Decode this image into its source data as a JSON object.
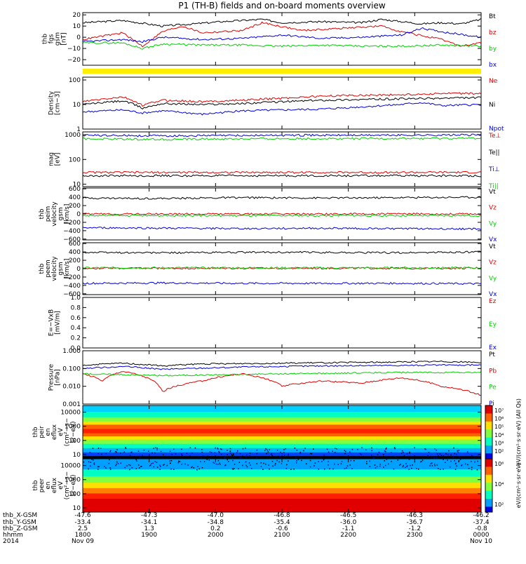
{
  "title": "P1 (TH-B) fields and on-board moments overview",
  "colors": {
    "black": "#000000",
    "red": "#e00000",
    "green": "#00d000",
    "blue": "#0000e0",
    "yellow": "#ffee00"
  },
  "colorbar_ticks": {
    "top": [
      "10⁷",
      "10⁶",
      "10⁵",
      "10⁴",
      "10³",
      "10²"
    ],
    "bottom": [
      "10⁶",
      "10⁴",
      "10²"
    ],
    "label_top": "eV/(cm²·s·sr·eV) (All Qs)",
    "label_bottom": "eV/(cm²·s·sr·eV)"
  },
  "time_axis": {
    "row_labels": [
      "thb_X-GSM",
      "thb_Y-GSM",
      "thb_Z-GSM",
      "hhmm",
      "2014"
    ],
    "columns": [
      {
        "x_gsm": "-47.6",
        "y_gsm": "-33.4",
        "z_gsm": "2.5",
        "hhmm": "1800",
        "date": "Nov 09"
      },
      {
        "x_gsm": "-47.3",
        "y_gsm": "-34.1",
        "z_gsm": "1.3",
        "hhmm": "1900",
        "date": ""
      },
      {
        "x_gsm": "-47.0",
        "y_gsm": "-34.8",
        "z_gsm": "0.2",
        "hhmm": "2000",
        "date": ""
      },
      {
        "x_gsm": "-46.8",
        "y_gsm": "-35.4",
        "z_gsm": "-0.6",
        "hhmm": "2100",
        "date": ""
      },
      {
        "x_gsm": "-46.5",
        "y_gsm": "-36.0",
        "z_gsm": "-1.1",
        "hhmm": "2200",
        "date": ""
      },
      {
        "x_gsm": "-46.3",
        "y_gsm": "-36.7",
        "z_gsm": "-1.2",
        "hhmm": "2300",
        "date": ""
      },
      {
        "x_gsm": "-46.2",
        "y_gsm": "-37.4",
        "z_gsm": "-0.8",
        "hhmm": "0000",
        "date": "Nov 10"
      }
    ]
  },
  "chart_data": [
    {
      "type": "line",
      "id": "fgs",
      "ylabel_lines": [
        "thb",
        "fgs",
        "gsm",
        "[nT]"
      ],
      "yscale": "linear",
      "ylim": [
        -25,
        22
      ],
      "yticks": [
        "20",
        "10",
        "0",
        "−10",
        "−20"
      ],
      "ytick_values": [
        20,
        10,
        0,
        -10,
        -20
      ],
      "series": [
        {
          "name": "Bt",
          "color": "black",
          "points": [
            [
              0,
              13
            ],
            [
              0.1,
              15
            ],
            [
              0.2,
              10
            ],
            [
              0.28,
              12
            ],
            [
              0.35,
              14
            ],
            [
              0.45,
              16
            ],
            [
              0.5,
              13
            ],
            [
              0.6,
              14
            ],
            [
              0.7,
              13
            ],
            [
              0.75,
              16
            ],
            [
              0.8,
              14
            ],
            [
              0.85,
              12
            ],
            [
              0.9,
              13
            ],
            [
              0.95,
              12
            ],
            [
              1,
              16
            ]
          ]
        },
        {
          "name": "bz",
          "color": "red",
          "points": [
            [
              0,
              -2
            ],
            [
              0.1,
              4
            ],
            [
              0.15,
              -8
            ],
            [
              0.2,
              5
            ],
            [
              0.25,
              10
            ],
            [
              0.3,
              4
            ],
            [
              0.4,
              6
            ],
            [
              0.45,
              13
            ],
            [
              0.55,
              6
            ],
            [
              0.65,
              8
            ],
            [
              0.75,
              10
            ],
            [
              0.8,
              5
            ],
            [
              0.9,
              -2
            ],
            [
              0.95,
              -8
            ],
            [
              1,
              -5
            ]
          ]
        },
        {
          "name": "by",
          "color": "green",
          "points": [
            [
              0,
              -5
            ],
            [
              0.1,
              -5
            ],
            [
              0.15,
              -10
            ],
            [
              0.2,
              -6
            ],
            [
              0.3,
              -7
            ],
            [
              0.4,
              -7
            ],
            [
              0.5,
              -8
            ],
            [
              0.6,
              -7
            ],
            [
              0.7,
              -8
            ],
            [
              0.8,
              -8
            ],
            [
              0.9,
              -7
            ],
            [
              1,
              -8
            ]
          ]
        },
        {
          "name": "bx",
          "color": "blue",
          "points": [
            [
              0,
              -4
            ],
            [
              0.1,
              -2
            ],
            [
              0.15,
              -4
            ],
            [
              0.2,
              0
            ],
            [
              0.3,
              -2
            ],
            [
              0.4,
              -1
            ],
            [
              0.5,
              2
            ],
            [
              0.6,
              -1
            ],
            [
              0.7,
              0
            ],
            [
              0.8,
              2
            ],
            [
              0.85,
              8
            ],
            [
              0.9,
              5
            ],
            [
              1,
              0
            ]
          ]
        }
      ]
    },
    {
      "type": "line",
      "id": "density",
      "ylabel_lines": [
        "Density",
        "[cm−3]"
      ],
      "yscale": "log",
      "ylim": [
        1,
        130
      ],
      "yticks": [
        "100",
        "10",
        "1"
      ],
      "ytick_values": [
        100,
        10,
        1
      ],
      "series": [
        {
          "name": "Ne",
          "color": "red",
          "points": [
            [
              0,
              13
            ],
            [
              0.1,
              20
            ],
            [
              0.15,
              9
            ],
            [
              0.2,
              15
            ],
            [
              0.3,
              13
            ],
            [
              0.4,
              15
            ],
            [
              0.5,
              18
            ],
            [
              0.6,
              22
            ],
            [
              0.7,
              24
            ],
            [
              0.8,
              25
            ],
            [
              0.9,
              28
            ],
            [
              1,
              28
            ]
          ]
        },
        {
          "name": "Ni",
          "color": "black",
          "points": [
            [
              0,
              10
            ],
            [
              0.1,
              14
            ],
            [
              0.15,
              7
            ],
            [
              0.2,
              11
            ],
            [
              0.3,
              10
            ],
            [
              0.4,
              11
            ],
            [
              0.5,
              13
            ],
            [
              0.6,
              15
            ],
            [
              0.7,
              16
            ],
            [
              0.8,
              17
            ],
            [
              0.9,
              18
            ],
            [
              1,
              19
            ]
          ]
        },
        {
          "name": "Npot",
          "color": "blue",
          "points": [
            [
              0,
              5
            ],
            [
              0.1,
              6
            ],
            [
              0.15,
              4.5
            ],
            [
              0.2,
              5.5
            ],
            [
              0.3,
              4
            ],
            [
              0.4,
              5.5
            ],
            [
              0.5,
              6
            ],
            [
              0.6,
              6.5
            ],
            [
              0.7,
              8
            ],
            [
              0.8,
              10
            ],
            [
              0.85,
              12
            ],
            [
              0.9,
              9
            ],
            [
              1,
              10
            ]
          ]
        }
      ]
    },
    {
      "type": "line",
      "id": "temperature",
      "ylabel_lines": [
        "mag",
        "[eV]"
      ],
      "yscale": "log",
      "ylim": [
        8,
        1300
      ],
      "yticks": [
        "1000",
        "100",
        "10"
      ],
      "ytick_values": [
        1000,
        100,
        10
      ],
      "series": [
        {
          "name": "Te⊥",
          "color": "red",
          "points": [
            [
              0,
              30
            ],
            [
              0.5,
              30
            ],
            [
              1,
              30
            ]
          ]
        },
        {
          "name": "Te||",
          "color": "black",
          "points": [
            [
              0,
              22
            ],
            [
              0.5,
              22
            ],
            [
              1,
              22
            ]
          ]
        },
        {
          "name": "Ti⊥",
          "color": "blue",
          "points": [
            [
              0,
              950
            ],
            [
              0.2,
              900
            ],
            [
              0.5,
              950
            ],
            [
              0.8,
              960
            ],
            [
              1,
              980
            ]
          ]
        },
        {
          "name": "Ti||",
          "color": "green",
          "points": [
            [
              0,
              680
            ],
            [
              0.2,
              650
            ],
            [
              0.5,
              690
            ],
            [
              0.8,
              700
            ],
            [
              1,
              710
            ]
          ]
        }
      ]
    },
    {
      "type": "line",
      "id": "peim-velocity",
      "ylabel_lines": [
        "thb",
        "peim",
        "velocity",
        "gsm",
        "[km/s]"
      ],
      "yscale": "linear",
      "ylim": [
        -620,
        620
      ],
      "yticks": [
        "600",
        "400",
        "200",
        "0",
        "−200",
        "−400",
        "−600"
      ],
      "ytick_values": [
        600,
        400,
        200,
        0,
        -200,
        -400,
        -600
      ],
      "series": [
        {
          "name": "Vt",
          "color": "black",
          "points": [
            [
              0,
              380
            ],
            [
              0.2,
              370
            ],
            [
              0.4,
              390
            ],
            [
              0.6,
              380
            ],
            [
              0.8,
              390
            ],
            [
              1,
              400
            ]
          ]
        },
        {
          "name": "Vz",
          "color": "red",
          "points": [
            [
              0,
              0
            ],
            [
              0.5,
              0
            ],
            [
              1,
              0
            ]
          ]
        },
        {
          "name": "Vy",
          "color": "green",
          "points": [
            [
              0,
              -40
            ],
            [
              0.5,
              -40
            ],
            [
              1,
              -40
            ]
          ]
        },
        {
          "name": "Vx",
          "color": "blue",
          "points": [
            [
              0,
              -330
            ],
            [
              0.2,
              -340
            ],
            [
              0.4,
              -350
            ],
            [
              0.6,
              -340
            ],
            [
              0.8,
              -350
            ],
            [
              1,
              -360
            ]
          ]
        }
      ]
    },
    {
      "type": "line",
      "id": "peem-velocity",
      "ylabel_lines": [
        "thb",
        "peem",
        "velocity",
        "gsm",
        "[km/s]"
      ],
      "yscale": "linear",
      "ylim": [
        -620,
        620
      ],
      "yticks": [
        "600",
        "400",
        "200",
        "0",
        "−200",
        "−400",
        "−600"
      ],
      "ytick_values": [
        600,
        400,
        200,
        0,
        -200,
        -400,
        -600
      ],
      "series": [
        {
          "name": "Vt",
          "color": "black",
          "points": [
            [
              0,
              390
            ],
            [
              0.2,
              380
            ],
            [
              0.4,
              390
            ],
            [
              0.6,
              390
            ],
            [
              0.8,
              380
            ],
            [
              1,
              400
            ]
          ]
        },
        {
          "name": "Vz",
          "color": "red",
          "points": [
            [
              0,
              10
            ],
            [
              0.5,
              10
            ],
            [
              1,
              10
            ]
          ]
        },
        {
          "name": "Vy",
          "color": "green",
          "points": [
            [
              0,
              20
            ],
            [
              0.5,
              20
            ],
            [
              1,
              20
            ]
          ]
        },
        {
          "name": "Vx",
          "color": "blue",
          "points": [
            [
              0,
              -350
            ],
            [
              0.2,
              -340
            ],
            [
              0.4,
              -350
            ],
            [
              0.6,
              -350
            ],
            [
              0.8,
              -350
            ],
            [
              1,
              -360
            ]
          ]
        }
      ]
    },
    {
      "type": "line",
      "id": "e-field",
      "ylabel_lines": [
        "E=−VxB",
        "[mV/m]"
      ],
      "yscale": "linear",
      "ylim": [
        0,
        1
      ],
      "yticks": [
        "1.0",
        "0.8",
        "0.6",
        "0.4",
        "0.2",
        "0.0"
      ],
      "ytick_values": [
        1.0,
        0.8,
        0.6,
        0.4,
        0.2,
        0.0
      ],
      "series": [
        {
          "name": "Ez",
          "color": "red",
          "points": []
        },
        {
          "name": "Ey",
          "color": "green",
          "points": []
        },
        {
          "name": "Ex",
          "color": "blue",
          "points": []
        }
      ]
    },
    {
      "type": "line",
      "id": "pressure",
      "ylabel_lines": [
        "Pressure",
        "[nPa]"
      ],
      "yscale": "log",
      "ylim": [
        0.001,
        1
      ],
      "yticks": [
        "1.000",
        "0.100",
        "0.010",
        "0.001"
      ],
      "ytick_values": [
        1,
        0.1,
        0.01,
        0.001
      ],
      "series": [
        {
          "name": "Pt",
          "color": "black",
          "points": [
            [
              0,
              0.15
            ],
            [
              0.1,
              0.2
            ],
            [
              0.2,
              0.14
            ],
            [
              0.3,
              0.18
            ],
            [
              0.5,
              0.2
            ],
            [
              0.7,
              0.22
            ],
            [
              0.9,
              0.25
            ],
            [
              1,
              0.22
            ]
          ]
        },
        {
          "name": "Pb",
          "color": "red",
          "points": [
            [
              0,
              0.05
            ],
            [
              0.05,
              0.02
            ],
            [
              0.1,
              0.07
            ],
            [
              0.2,
              0.005
            ],
            [
              0.3,
              0.02
            ],
            [
              0.4,
              0.05
            ],
            [
              0.5,
              0.01
            ],
            [
              0.6,
              0.02
            ],
            [
              0.7,
              0.015
            ],
            [
              0.8,
              0.03
            ],
            [
              0.9,
              0.01
            ],
            [
              1,
              0.003
            ]
          ]
        },
        {
          "name": "Pe",
          "color": "green",
          "points": [
            [
              0,
              0.05
            ],
            [
              0.2,
              0.04
            ],
            [
              0.5,
              0.05
            ],
            [
              0.8,
              0.06
            ],
            [
              1,
              0.06
            ]
          ]
        },
        {
          "name": "Pi",
          "color": "blue",
          "points": [
            [
              0,
              0.1
            ],
            [
              0.1,
              0.13
            ],
            [
              0.2,
              0.09
            ],
            [
              0.4,
              0.12
            ],
            [
              0.6,
              0.14
            ],
            [
              0.8,
              0.15
            ],
            [
              1,
              0.16
            ]
          ]
        }
      ]
    },
    {
      "type": "heatmap",
      "id": "peir-spectrogram",
      "ylabel_lines": [
        "thb",
        "peir",
        "en",
        "eflux",
        "eV",
        "(cm²−s−",
        "sr−eV)"
      ],
      "yscale": "log",
      "ylim": [
        5,
        30000
      ],
      "yticks": [
        "10000",
        "1000",
        "100",
        "10"
      ],
      "ytick_values": [
        10000,
        1000,
        100,
        10
      ]
    },
    {
      "type": "heatmap",
      "id": "peer-spectrogram",
      "ylabel_lines": [
        "thb",
        "peer",
        "en",
        "eflux",
        "eV",
        "(cm²−s−",
        "sr−eV)"
      ],
      "yscale": "log",
      "ylim": [
        5,
        30000
      ],
      "yticks": [
        "10000",
        "1000",
        "100",
        "10"
      ],
      "ytick_values": [
        10000,
        1000,
        100,
        10
      ]
    }
  ]
}
